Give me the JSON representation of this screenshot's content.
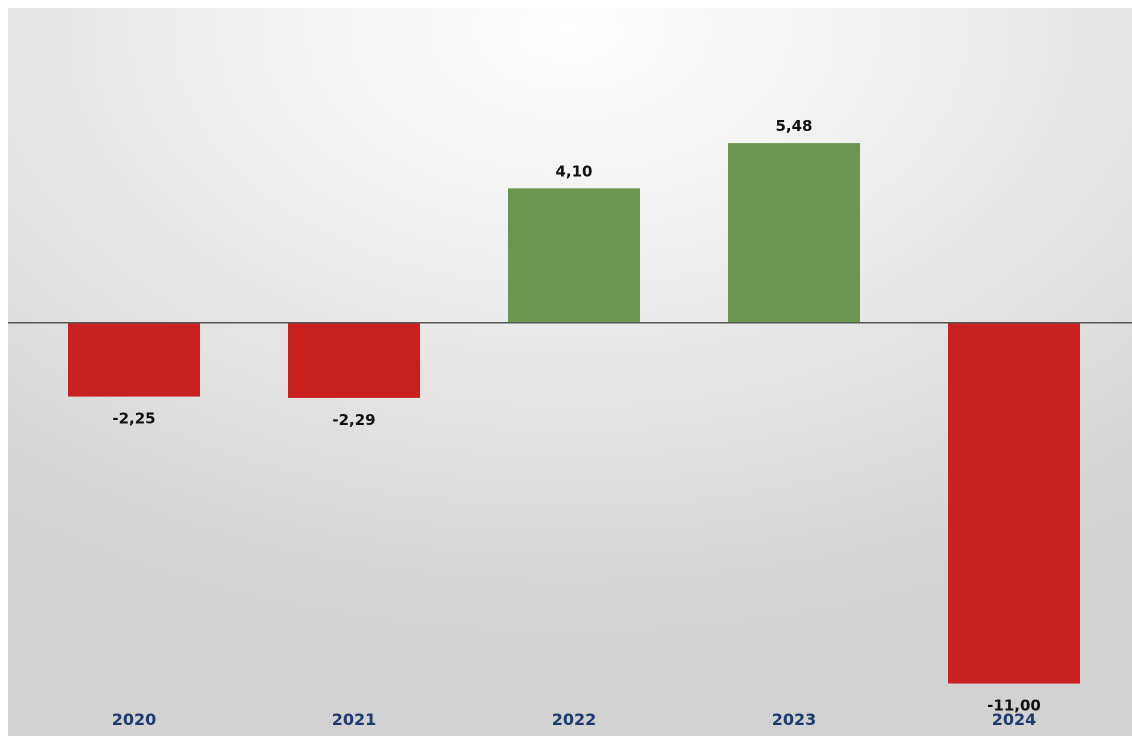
{
  "chart_data": {
    "type": "bar",
    "categories": [
      "2020",
      "2021",
      "2022",
      "2023",
      "2024"
    ],
    "values": [
      -2.25,
      -2.29,
      4.1,
      5.48,
      -11.0
    ],
    "value_labels": [
      "-2,25",
      "-2,29",
      "4,10",
      "5,48",
      "-11,00"
    ],
    "title": "",
    "xlabel": "",
    "ylabel": "",
    "ylim": [
      -12.6,
      9.6
    ],
    "grid": false,
    "legend": "none",
    "colors": {
      "positive": "#6a9651",
      "negative": "#c8211f",
      "zero_line": "#555555",
      "tick_label": "#1f3a6e"
    }
  }
}
